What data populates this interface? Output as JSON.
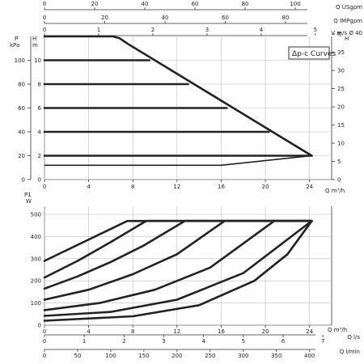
{
  "chart_data": [
    {
      "type": "line",
      "name_box": "Δp-c Curves",
      "ylabel": "P kPa",
      "ylabel_top": "P",
      "ylabel_unit": "kPa",
      "y2label_m": "H m",
      "y2label_m_top": "H",
      "y2label_m_unit": "m",
      "y2label_ft": "H ft",
      "y2label_ft_top": "H",
      "y2label_ft_unit": "ft",
      "xlabel": "Q m³/h",
      "xlim": [
        0,
        26
      ],
      "ylim_m": [
        0,
        12
      ],
      "x_ticks": [
        0,
        4,
        8,
        12,
        16,
        20,
        24
      ],
      "y_ticks_kpa": [
        0,
        20,
        40,
        60,
        80,
        100
      ],
      "y_ticks_m": [
        0,
        2,
        4,
        6,
        8,
        10
      ],
      "y_ticks_ft": [
        "0",
        "5",
        "10",
        "15",
        "20",
        "25",
        "30",
        "35",
        "ft"
      ],
      "top_axes": [
        {
          "label": "Q USgpm",
          "ticks": [
            0,
            20,
            40,
            60,
            80,
            100
          ]
        },
        {
          "label": "Q IMPgpm",
          "ticks": [
            0,
            20,
            40,
            60,
            80
          ]
        },
        {
          "label": "V m/s Ø 40",
          "ticks": [
            0,
            1,
            2,
            3,
            4,
            5
          ]
        }
      ],
      "series": [
        {
          "x": [
            0,
            16,
            24.2
          ],
          "y": [
            1.2,
            1.2,
            2
          ]
        },
        {
          "x": [
            0,
            24.2
          ],
          "y": [
            2,
            2
          ]
        },
        {
          "x": [
            0,
            20.3
          ],
          "y": [
            4,
            4
          ]
        },
        {
          "x": [
            0,
            16.5
          ],
          "y": [
            6,
            6
          ]
        },
        {
          "x": [
            0,
            13
          ],
          "y": [
            8,
            8
          ]
        },
        {
          "x": [
            0,
            9.5
          ],
          "y": [
            10,
            10
          ]
        },
        {
          "x": [
            0,
            6.2,
            6.8,
            7.5,
            24.2
          ],
          "y": [
            12,
            12,
            11.85,
            11.4,
            2
          ]
        }
      ]
    },
    {
      "type": "line",
      "ylabel": "P1 W",
      "ylabel_top": "P1",
      "ylabel_unit": "W",
      "xlabel": "Q m³/h",
      "xlim": [
        0,
        26
      ],
      "ylim": [
        0,
        500
      ],
      "x_ticks": [
        0,
        4,
        8,
        12,
        16,
        20,
        24
      ],
      "y_ticks": [
        0,
        100,
        200,
        300,
        400,
        500
      ],
      "bottom_axes": [
        {
          "label": "Q l/s",
          "ticks": [
            0,
            1,
            2,
            3,
            4,
            5,
            6,
            7
          ]
        },
        {
          "label": "Q l/min",
          "ticks": [
            0,
            50,
            100,
            150,
            200,
            250,
            300,
            350,
            400
          ]
        }
      ],
      "series": [
        {
          "x": [
            0,
            7.5,
            24.2
          ],
          "y": [
            290,
            470,
            470
          ]
        },
        {
          "x": [
            0,
            3,
            6,
            9.2,
            24.2
          ],
          "y": [
            215,
            290,
            375,
            470,
            470
          ]
        },
        {
          "x": [
            0,
            3,
            6,
            9,
            12.7,
            24.2
          ],
          "y": [
            165,
            220,
            285,
            360,
            470,
            470
          ]
        },
        {
          "x": [
            0,
            4,
            8,
            12,
            16.3,
            24.2
          ],
          "y": [
            115,
            160,
            230,
            320,
            470,
            470
          ]
        },
        {
          "x": [
            0,
            5,
            10,
            15,
            20.8,
            24.2
          ],
          "y": [
            68,
            100,
            160,
            260,
            470,
            470
          ]
        },
        {
          "x": [
            0,
            6,
            12,
            18,
            24.2
          ],
          "y": [
            42,
            60,
            115,
            235,
            470
          ]
        },
        {
          "x": [
            0,
            8,
            14,
            19,
            22,
            24.2
          ],
          "y": [
            20,
            40,
            90,
            200,
            320,
            470
          ]
        }
      ]
    }
  ]
}
